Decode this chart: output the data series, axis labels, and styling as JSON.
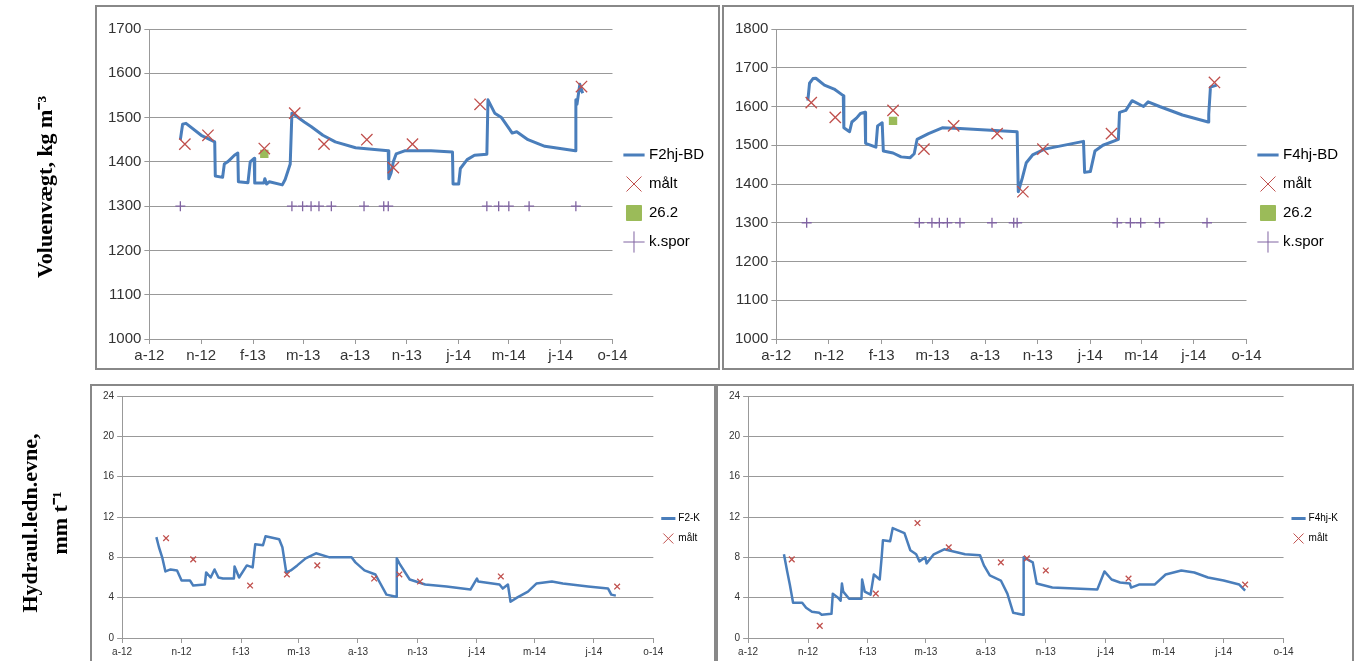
{
  "chart_data": [
    {
      "type": "line",
      "ylabel": "Voluenvægt, kg m⁻³",
      "xlim": [
        "2012-08-01",
        "2014-11-01"
      ],
      "xticks": [
        {
          "value": "2012-08-01",
          "label": "a-12"
        },
        {
          "value": "2012-11-01",
          "label": "n-12"
        },
        {
          "value": "2013-02-01",
          "label": "f-13"
        },
        {
          "value": "2013-05-01",
          "label": "m-13"
        },
        {
          "value": "2013-08-01",
          "label": "a-13"
        },
        {
          "value": "2013-11-01",
          "label": "n-13"
        },
        {
          "value": "2014-02-01",
          "label": "j-14"
        },
        {
          "value": "2014-05-01",
          "label": "m-14"
        },
        {
          "value": "2014-08-01",
          "label": "j-14"
        },
        {
          "value": "2014-11-01",
          "label": "o-14"
        }
      ],
      "ylim": [
        1000,
        1700
      ],
      "yticks": [
        1000,
        1100,
        1200,
        1300,
        1400,
        1500,
        1600,
        1700
      ],
      "grid": "y",
      "legend": "right",
      "series": [
        {
          "name": "F2hj-BD",
          "type": "line",
          "marker": "none",
          "color": "#4a7ebb",
          "x": [
            "2012-09-25",
            "2012-09-29",
            "2012-10-05",
            "2012-11-01",
            "2012-11-25",
            "2012-11-26",
            "2012-12-09",
            "2012-12-12",
            "2012-12-18",
            "2012-12-30",
            "2013-01-05",
            "2013-01-06",
            "2013-01-23",
            "2013-01-27",
            "2013-02-03",
            "2013-02-04",
            "2013-02-20",
            "2013-02-22",
            "2013-02-25",
            "2013-03-02",
            "2013-03-25",
            "2013-03-30",
            "2013-04-08",
            "2013-04-11",
            "2013-04-22",
            "2013-05-03",
            "2013-05-15",
            "2013-06-05",
            "2013-06-27",
            "2013-08-02",
            "2013-09-29",
            "2013-09-30",
            "2013-10-04",
            "2013-10-08",
            "2013-10-13",
            "2013-10-28",
            "2013-12-14",
            "2014-01-21",
            "2014-01-22",
            "2014-02-01",
            "2014-02-04",
            "2014-02-16",
            "2014-03-01",
            "2014-03-23",
            "2014-03-25",
            "2014-04-06",
            "2014-04-18",
            "2014-05-07",
            "2014-05-15",
            "2014-06-04",
            "2014-07-04",
            "2014-08-27",
            "2014-08-28",
            "2014-08-30",
            "2014-09-04",
            "2014-09-09"
          ],
          "values": [
            1450,
            1485,
            1487,
            1460,
            1445,
            1368,
            1365,
            1395,
            1400,
            1415,
            1420,
            1355,
            1353,
            1400,
            1408,
            1352,
            1352,
            1362,
            1350,
            1355,
            1348,
            1360,
            1395,
            1510,
            1500,
            1490,
            1480,
            1460,
            1445,
            1432,
            1425,
            1362,
            1375,
            1400,
            1418,
            1425,
            1425,
            1422,
            1350,
            1350,
            1385,
            1405,
            1415,
            1417,
            1540,
            1510,
            1500,
            1465,
            1468,
            1450,
            1435,
            1425,
            1540,
            1530,
            1575,
            1555
          ]
        },
        {
          "name": "målt",
          "type": "scatter",
          "marker": "cross",
          "color": "#c0504d",
          "x": [
            "2012-10-03",
            "2012-11-13",
            "2013-02-21",
            "2013-04-16",
            "2013-06-07",
            "2013-08-22",
            "2013-10-08",
            "2013-11-11",
            "2014-03-11",
            "2014-09-07"
          ],
          "values": [
            1440,
            1460,
            1430,
            1510,
            1440,
            1450,
            1387,
            1440,
            1530,
            1570
          ]
        },
        {
          "name": "26.2",
          "type": "line",
          "marker": "square",
          "color": "#9bbb59",
          "x": [
            "2013-02-21"
          ],
          "values": [
            1418
          ]
        },
        {
          "name": "k.spor",
          "type": "scatter",
          "marker": "plus",
          "color": "#8064a2",
          "x": [
            "2012-09-25",
            "2013-04-11",
            "2013-04-30",
            "2013-05-15",
            "2013-05-29",
            "2013-06-20",
            "2013-08-17",
            "2013-09-21",
            "2013-09-29",
            "2014-03-23",
            "2014-04-13",
            "2014-05-01",
            "2014-06-06",
            "2014-08-28"
          ],
          "values": [
            1300,
            1300,
            1300,
            1300,
            1300,
            1300,
            1300,
            1300,
            1300,
            1300,
            1300,
            1300,
            1300,
            1300
          ]
        }
      ]
    },
    {
      "type": "line",
      "xlim": [
        "2012-08-01",
        "2014-11-01"
      ],
      "xticks": [
        {
          "value": "2012-08-01",
          "label": "a-12"
        },
        {
          "value": "2012-11-01",
          "label": "n-12"
        },
        {
          "value": "2013-02-01",
          "label": "f-13"
        },
        {
          "value": "2013-05-01",
          "label": "m-13"
        },
        {
          "value": "2013-08-01",
          "label": "a-13"
        },
        {
          "value": "2013-11-01",
          "label": "n-13"
        },
        {
          "value": "2014-02-01",
          "label": "j-14"
        },
        {
          "value": "2014-05-01",
          "label": "m-14"
        },
        {
          "value": "2014-08-01",
          "label": "j-14"
        },
        {
          "value": "2014-11-01",
          "label": "o-14"
        }
      ],
      "ylim": [
        1000,
        1800
      ],
      "yticks": [
        1000,
        1100,
        1200,
        1300,
        1400,
        1500,
        1600,
        1700,
        1800
      ],
      "grid": "y",
      "legend": "right",
      "series": [
        {
          "name": "F4hj-BD",
          "type": "line",
          "marker": "none",
          "color": "#4a7ebb",
          "x": [
            "2012-09-25",
            "2012-09-28",
            "2012-10-04",
            "2012-10-09",
            "2012-10-24",
            "2012-11-10",
            "2012-11-26",
            "2012-11-27",
            "2012-12-07",
            "2012-12-11",
            "2012-12-19",
            "2012-12-26",
            "2013-01-03",
            "2013-01-04",
            "2013-01-22",
            "2013-01-25",
            "2013-02-02",
            "2013-02-04",
            "2013-02-21",
            "2013-03-07",
            "2013-03-23",
            "2013-03-30",
            "2013-04-04",
            "2013-04-24",
            "2013-05-18",
            "2013-06-18",
            "2013-09-26",
            "2013-09-28",
            "2013-10-05",
            "2013-10-12",
            "2013-10-23",
            "2013-11-13",
            "2014-01-20",
            "2014-01-22",
            "2014-02-01",
            "2014-02-09",
            "2014-02-23",
            "2014-03-22",
            "2014-03-24",
            "2014-04-04",
            "2014-04-15",
            "2014-05-05",
            "2014-05-13",
            "2014-06-02",
            "2014-07-12",
            "2014-08-26",
            "2014-08-27",
            "2014-08-30",
            "2014-09-10"
          ],
          "values": [
            1615,
            1660,
            1672,
            1673,
            1655,
            1645,
            1628,
            1545,
            1535,
            1560,
            1570,
            1582,
            1585,
            1505,
            1495,
            1550,
            1558,
            1485,
            1480,
            1470,
            1468,
            1478,
            1515,
            1530,
            1545,
            1543,
            1535,
            1380,
            1415,
            1455,
            1475,
            1490,
            1510,
            1430,
            1432,
            1485,
            1500,
            1515,
            1585,
            1590,
            1615,
            1600,
            1612,
            1600,
            1578,
            1560,
            1580,
            1650,
            1655
          ]
        },
        {
          "name": "målt",
          "type": "scatter",
          "marker": "cross",
          "color": "#c0504d",
          "x": [
            "2012-10-01",
            "2012-11-12",
            "2013-02-21",
            "2013-04-16",
            "2013-06-07",
            "2013-08-22",
            "2013-10-06",
            "2013-11-10",
            "2014-03-10",
            "2014-09-06"
          ],
          "values": [
            1610,
            1572,
            1590,
            1490,
            1550,
            1530,
            1380,
            1490,
            1530,
            1662
          ]
        },
        {
          "name": "26.2",
          "type": "line",
          "marker": "square",
          "color": "#9bbb59",
          "x": [
            "2013-02-21"
          ],
          "values": [
            1563
          ]
        },
        {
          "name": "k.spor",
          "type": "scatter",
          "marker": "plus",
          "color": "#8064a2",
          "x": [
            "2012-09-23",
            "2013-04-08",
            "2013-04-30",
            "2013-05-13",
            "2013-05-27",
            "2013-06-18",
            "2013-08-13",
            "2013-09-20",
            "2013-09-26",
            "2014-03-20",
            "2014-04-12",
            "2014-04-30",
            "2014-06-02",
            "2014-08-24"
          ],
          "values": [
            1300,
            1300,
            1300,
            1300,
            1300,
            1300,
            1300,
            1300,
            1300,
            1300,
            1300,
            1300,
            1300,
            1300
          ]
        }
      ]
    },
    {
      "type": "line",
      "ylabel": "Hydraul.ledn.evne, mm t⁻¹",
      "xlim": [
        "2012-08-01",
        "2014-11-01"
      ],
      "xticks": [
        {
          "value": "2012-08-01",
          "label": "a-12"
        },
        {
          "value": "2012-11-01",
          "label": "n-12"
        },
        {
          "value": "2013-02-01",
          "label": "f-13"
        },
        {
          "value": "2013-05-01",
          "label": "m-13"
        },
        {
          "value": "2013-08-01",
          "label": "a-13"
        },
        {
          "value": "2013-11-01",
          "label": "n-13"
        },
        {
          "value": "2014-02-01",
          "label": "j-14"
        },
        {
          "value": "2014-05-01",
          "label": "m-14"
        },
        {
          "value": "2014-08-01",
          "label": "j-14"
        },
        {
          "value": "2014-11-01",
          "label": "o-14"
        }
      ],
      "ylim": [
        0,
        24
      ],
      "yticks": [
        0,
        4,
        8,
        12,
        16,
        20,
        24
      ],
      "grid": "y",
      "legend": "right",
      "series": [
        {
          "name": "F2-K",
          "type": "line",
          "marker": "none",
          "color": "#4a7ebb",
          "x": [
            "2012-09-23",
            "2012-09-27",
            "2012-10-02",
            "2012-10-07",
            "2012-10-15",
            "2012-10-25",
            "2012-11-01",
            "2012-11-14",
            "2012-11-19",
            "2012-12-07",
            "2012-12-09",
            "2012-12-16",
            "2012-12-22",
            "2012-12-28",
            "2013-01-04",
            "2013-01-21",
            "2013-01-22",
            "2013-01-29",
            "2013-02-10",
            "2013-02-19",
            "2013-02-23",
            "2013-03-07",
            "2013-03-11",
            "2013-04-01",
            "2013-04-06",
            "2013-04-12",
            "2013-04-19",
            "2013-04-29",
            "2013-05-12",
            "2013-05-28",
            "2013-06-18",
            "2013-07-22",
            "2013-07-28",
            "2013-08-11",
            "2013-08-28",
            "2013-09-14",
            "2013-09-29",
            "2013-09-30",
            "2013-10-04",
            "2013-10-13",
            "2013-10-20",
            "2013-11-13",
            "2013-12-16",
            "2014-01-22",
            "2014-02-01",
            "2014-02-03",
            "2014-03-08",
            "2014-03-13",
            "2014-03-21",
            "2014-03-25",
            "2014-04-04",
            "2014-04-21",
            "2014-05-04",
            "2014-05-28",
            "2014-06-14",
            "2014-07-23",
            "2014-08-23",
            "2014-08-28",
            "2014-09-04"
          ],
          "values": [
            10,
            9,
            8,
            6.6,
            6.8,
            6.7,
            5.7,
            5.7,
            5.2,
            5.3,
            6.5,
            6,
            6.8,
            6,
            5.9,
            5.9,
            7.1,
            6,
            7.2,
            7,
            9.3,
            9.2,
            10.1,
            9.8,
            9,
            6.5,
            6.7,
            7.2,
            7.9,
            8.4,
            8,
            8,
            7.5,
            6.7,
            6.3,
            4.3,
            4.1,
            7.9,
            7.4,
            6.5,
            5.8,
            5.3,
            5.1,
            4.8,
            5.9,
            5.6,
            5.3,
            4.9,
            5.3,
            3.6,
            4,
            4.6,
            5.4,
            5.6,
            5.4,
            5.1,
            4.9,
            4.3,
            4.2
          ]
        },
        {
          "name": "målt",
          "type": "scatter",
          "marker": "cross",
          "color": "#c0504d",
          "x": [
            "2012-10-08",
            "2012-11-19",
            "2013-02-15",
            "2013-04-13",
            "2013-05-30",
            "2013-08-26",
            "2013-10-04",
            "2013-11-05",
            "2014-03-10",
            "2014-09-06"
          ],
          "values": [
            9.9,
            7.8,
            5.2,
            6.3,
            7.2,
            5.9,
            6.3,
            5.6,
            6.1,
            5.1
          ]
        }
      ]
    },
    {
      "type": "line",
      "xlim": [
        "2012-08-01",
        "2014-11-01"
      ],
      "xticks": [
        {
          "value": "2012-08-01",
          "label": "a-12"
        },
        {
          "value": "2012-11-01",
          "label": "n-12"
        },
        {
          "value": "2013-02-01",
          "label": "f-13"
        },
        {
          "value": "2013-05-01",
          "label": "m-13"
        },
        {
          "value": "2013-08-01",
          "label": "a-13"
        },
        {
          "value": "2013-11-01",
          "label": "n-13"
        },
        {
          "value": "2014-02-01",
          "label": "j-14"
        },
        {
          "value": "2014-05-01",
          "label": "m-14"
        },
        {
          "value": "2014-08-01",
          "label": "j-14"
        },
        {
          "value": "2014-11-01",
          "label": "o-14"
        }
      ],
      "ylim": [
        0,
        24
      ],
      "yticks": [
        0,
        4,
        8,
        12,
        16,
        20,
        24
      ],
      "grid": "y",
      "legend": "right",
      "series": [
        {
          "name": "F4hj-K",
          "type": "line",
          "marker": "none",
          "color": "#4a7ebb",
          "x": [
            "2012-09-25",
            "2012-09-30",
            "2012-10-04",
            "2012-10-09",
            "2012-10-23",
            "2012-10-29",
            "2012-11-07",
            "2012-11-18",
            "2012-11-22",
            "2012-12-07",
            "2012-12-09",
            "2012-12-17",
            "2012-12-21",
            "2012-12-23",
            "2012-12-25",
            "2013-01-03",
            "2013-01-22",
            "2013-01-23",
            "2013-01-27",
            "2013-02-05",
            "2013-02-10",
            "2013-02-19",
            "2013-02-22",
            "2013-02-24",
            "2013-03-07",
            "2013-03-11",
            "2013-03-29",
            "2013-04-07",
            "2013-04-16",
            "2013-04-21",
            "2013-04-30",
            "2013-05-02",
            "2013-05-13",
            "2013-05-29",
            "2013-06-30",
            "2013-07-23",
            "2013-07-29",
            "2013-08-07",
            "2013-08-24",
            "2013-09-03",
            "2013-09-12",
            "2013-09-27",
            "2013-09-28",
            "2013-10-12",
            "2013-10-18",
            "2013-11-11",
            "2014-01-19",
            "2014-01-30",
            "2014-02-10",
            "2014-02-23",
            "2014-03-10",
            "2014-03-12",
            "2014-03-24",
            "2014-04-17",
            "2014-05-04",
            "2014-05-28",
            "2014-06-17",
            "2014-07-08",
            "2014-08-01",
            "2014-08-25",
            "2014-09-03"
          ],
          "values": [
            8.3,
            6.6,
            5.3,
            3.5,
            3.5,
            3,
            2.6,
            2.5,
            2.3,
            2.4,
            4.4,
            4,
            3.7,
            5.4,
            4.6,
            3.9,
            3.9,
            5.8,
            4.6,
            4.3,
            6.3,
            5.8,
            8,
            9.7,
            9.6,
            10.9,
            10.4,
            8.7,
            8.3,
            7.6,
            8,
            7.4,
            8.3,
            8.8,
            8.3,
            8.2,
            7.2,
            6.2,
            5.7,
            4.4,
            2.5,
            2.3,
            8,
            7.5,
            5.4,
            5,
            4.8,
            6.6,
            5.8,
            5.5,
            5.4,
            5,
            5.3,
            5.3,
            6.3,
            6.7,
            6.5,
            6,
            5.7,
            5.3,
            4.7
          ]
        },
        {
          "name": "målt",
          "type": "scatter",
          "marker": "cross",
          "color": "#c0504d",
          "x": [
            "2012-10-07",
            "2012-11-19",
            "2013-02-13",
            "2013-04-18",
            "2013-06-05",
            "2013-08-24",
            "2013-10-03",
            "2013-11-01",
            "2014-03-08",
            "2014-09-03"
          ],
          "values": [
            7.8,
            1.2,
            4.4,
            11.4,
            9,
            7.5,
            7.9,
            6.7,
            5.9,
            5.3
          ]
        }
      ]
    }
  ]
}
